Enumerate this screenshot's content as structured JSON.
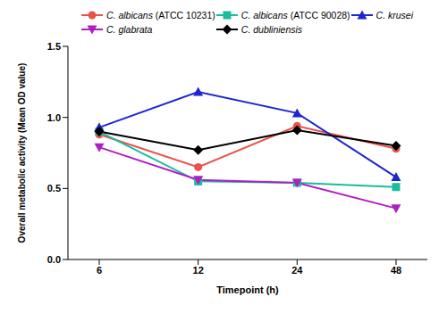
{
  "chart_data": {
    "type": "line",
    "x_label": "Timepoint (h)",
    "y_label": "Overall metabolic activity (Mean OD value)",
    "categories": [
      6,
      12,
      24,
      48
    ],
    "ylim": [
      0,
      1.5
    ],
    "yticks": [
      {
        "value": 0,
        "label": "0.0"
      },
      0.5,
      {
        "value": 1,
        "label": "1.0"
      },
      {
        "value": 1.5,
        "label": "1.5"
      }
    ],
    "grid": false,
    "legend": "top",
    "series": [
      {
        "name": "C. albicans (ATCC 10231)",
        "color": "#e8534b",
        "marker": "circle",
        "values": [
          0.88,
          0.65,
          0.94,
          0.78
        ]
      },
      {
        "name": "C. albicans (ATCC 90028)",
        "color": "#1abc9c",
        "marker": "square",
        "values": [
          0.9,
          0.55,
          0.54,
          0.51
        ]
      },
      {
        "name": "C. krusei",
        "color": "#1f24d0",
        "marker": "triangle",
        "values": [
          0.93,
          1.18,
          1.03,
          0.58
        ]
      },
      {
        "name": "C. glabrata",
        "color": "#b01fc2",
        "marker": "triangle-down",
        "values": [
          0.79,
          0.56,
          0.54,
          0.36
        ]
      },
      {
        "name": "C. dubliniensis",
        "color": "#000000",
        "marker": "diamond",
        "values": [
          0.9,
          0.77,
          0.91,
          0.8
        ]
      }
    ]
  }
}
